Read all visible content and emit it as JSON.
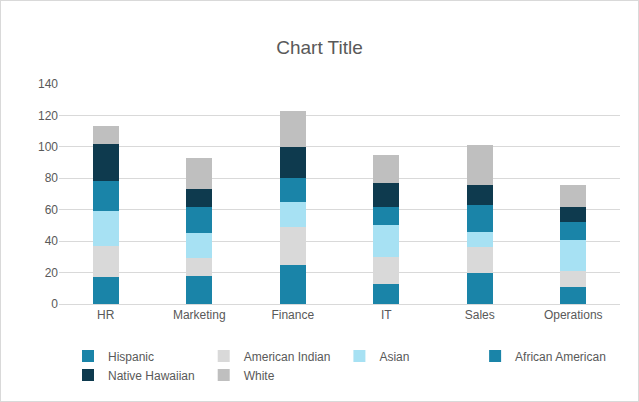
{
  "chart_data": {
    "type": "bar",
    "title": "Chart Title",
    "stacked": true,
    "grid": true,
    "legend": "bottom",
    "categories": [
      "HR",
      "Marketing",
      "Finance",
      "IT",
      "Sales",
      "Operations"
    ],
    "series": [
      {
        "name": "Hispanic",
        "color": "#1a84a8",
        "values": [
          17,
          18,
          25,
          13,
          20,
          11
        ]
      },
      {
        "name": "American Indian",
        "color": "#d9d9d9",
        "values": [
          20,
          11,
          24,
          17,
          16,
          10
        ]
      },
      {
        "name": "Asian",
        "color": "#a7e1f3",
        "values": [
          22,
          16,
          16,
          20,
          10,
          20
        ]
      },
      {
        "name": "African American",
        "color": "#1a84a8",
        "values": [
          19,
          17,
          15,
          12,
          17,
          11
        ]
      },
      {
        "name": "Native Hawaiian",
        "color": "#0e3a4e",
        "values": [
          24,
          11,
          20,
          15,
          13,
          10
        ]
      },
      {
        "name": "White",
        "color": "#bfbfbf",
        "values": [
          11,
          20,
          23,
          18,
          25,
          14
        ]
      }
    ],
    "ylim": [
      0,
      140
    ],
    "yticks": [
      0,
      20,
      40,
      60,
      80,
      100,
      120,
      140
    ]
  }
}
